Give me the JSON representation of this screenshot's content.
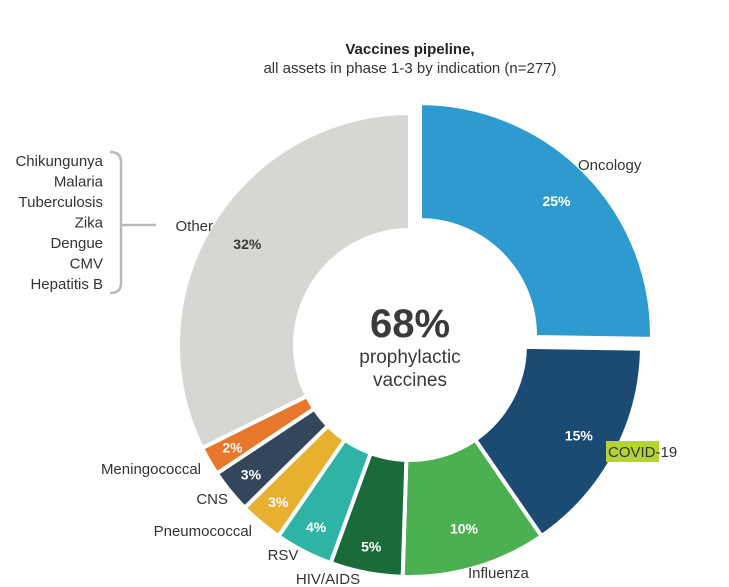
{
  "chart_data": {
    "type": "pie",
    "title": "Vaccines pipeline,",
    "subtitle": "all assets in phase 1-3 by indication (n=277)",
    "center_value": "68%",
    "center_label_line1": "prophylactic",
    "center_label_line2": "vaccines",
    "slices": [
      {
        "name": "Oncology",
        "value": 25,
        "label": "25%",
        "color": "#2e9bd0",
        "label_color": "#ffffff",
        "exploded": true
      },
      {
        "name": "COVID-19",
        "value": 15,
        "label": "15%",
        "color": "#1b4a73",
        "label_color": "#ffffff",
        "exploded": false
      },
      {
        "name": "Influenza",
        "value": 10,
        "label": "10%",
        "color": "#4caf50",
        "label_color": "#ffffff",
        "exploded": false
      },
      {
        "name": "HIV/AIDS",
        "value": 5,
        "label": "5%",
        "color": "#1a6b3a",
        "label_color": "#ffffff",
        "exploded": false
      },
      {
        "name": "RSV",
        "value": 4,
        "label": "4%",
        "color": "#2fb3a5",
        "label_color": "#ffffff",
        "exploded": false
      },
      {
        "name": "Pneumococcal",
        "value": 3,
        "label": "3%",
        "color": "#e8b030",
        "label_color": "#ffffff",
        "exploded": false
      },
      {
        "name": "CNS",
        "value": 3,
        "label": "3%",
        "color": "#34465c",
        "label_color": "#ffffff",
        "exploded": false
      },
      {
        "name": "Meningococcal",
        "value": 2,
        "label": "2%",
        "color": "#e8762b",
        "label_color": "#ffffff",
        "exploded": false
      },
      {
        "name": "Other",
        "value": 32,
        "label": "32%",
        "color": "#d6d6d2",
        "label_color": "#3a3a3a",
        "exploded": false
      }
    ],
    "other_breakdown": [
      "Chikungunya",
      "Malaria",
      "Tuberculosis",
      "Zika",
      "Dengue",
      "CMV",
      "Hepatitis B"
    ],
    "highlight": {
      "text": "COVID",
      "color": "#b5d334"
    }
  }
}
